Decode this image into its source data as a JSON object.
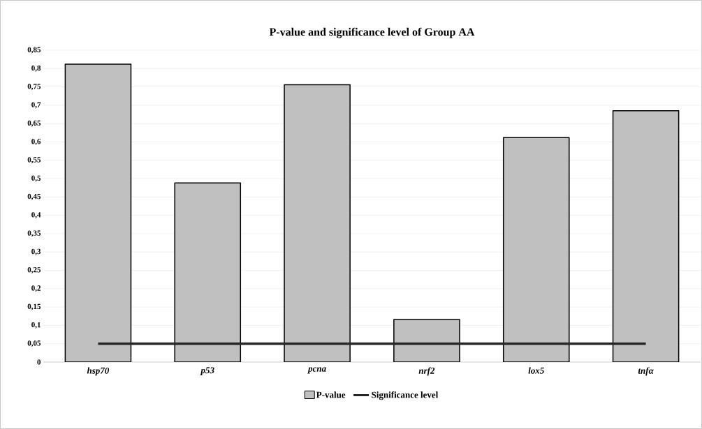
{
  "chart_data": {
    "type": "bar",
    "title": "P-value and significance level of Group AA",
    "categories": [
      "hsp70",
      "p53",
      "pcna",
      "nrf2",
      "lox5",
      "tnfα"
    ],
    "series": [
      {
        "name": "P-value",
        "color": "#c0c0c0",
        "values": [
          0.812,
          0.488,
          0.756,
          0.116,
          0.612,
          0.685
        ]
      },
      {
        "name": "Significance level",
        "type": "line",
        "color": "#262626",
        "values": [
          0.05,
          0.05,
          0.05,
          0.05,
          0.05,
          0.05
        ]
      }
    ],
    "ylim": [
      0,
      0.85
    ],
    "yticks": [
      {
        "value": 0,
        "label": "0"
      },
      {
        "value": 0.05,
        "label": "0,05"
      },
      {
        "value": 0.1,
        "label": "0,1"
      },
      {
        "value": 0.15,
        "label": "0,15"
      },
      {
        "value": 0.2,
        "label": "0,2"
      },
      {
        "value": 0.25,
        "label": "0,25"
      },
      {
        "value": 0.3,
        "label": "0,3"
      },
      {
        "value": 0.35,
        "label": "0,35"
      },
      {
        "value": 0.4,
        "label": "0,4"
      },
      {
        "value": 0.45,
        "label": "0,45"
      },
      {
        "value": 0.5,
        "label": "0,5"
      },
      {
        "value": 0.55,
        "label": "0,55"
      },
      {
        "value": 0.6,
        "label": "0,6"
      },
      {
        "value": 0.65,
        "label": "0,65"
      },
      {
        "value": 0.7,
        "label": "0,7"
      },
      {
        "value": 0.75,
        "label": "0,75"
      },
      {
        "value": 0.8,
        "label": "0,8"
      },
      {
        "value": 0.85,
        "label": "0,85"
      }
    ],
    "grid": "y",
    "legend": "bottom",
    "marker": "none"
  }
}
